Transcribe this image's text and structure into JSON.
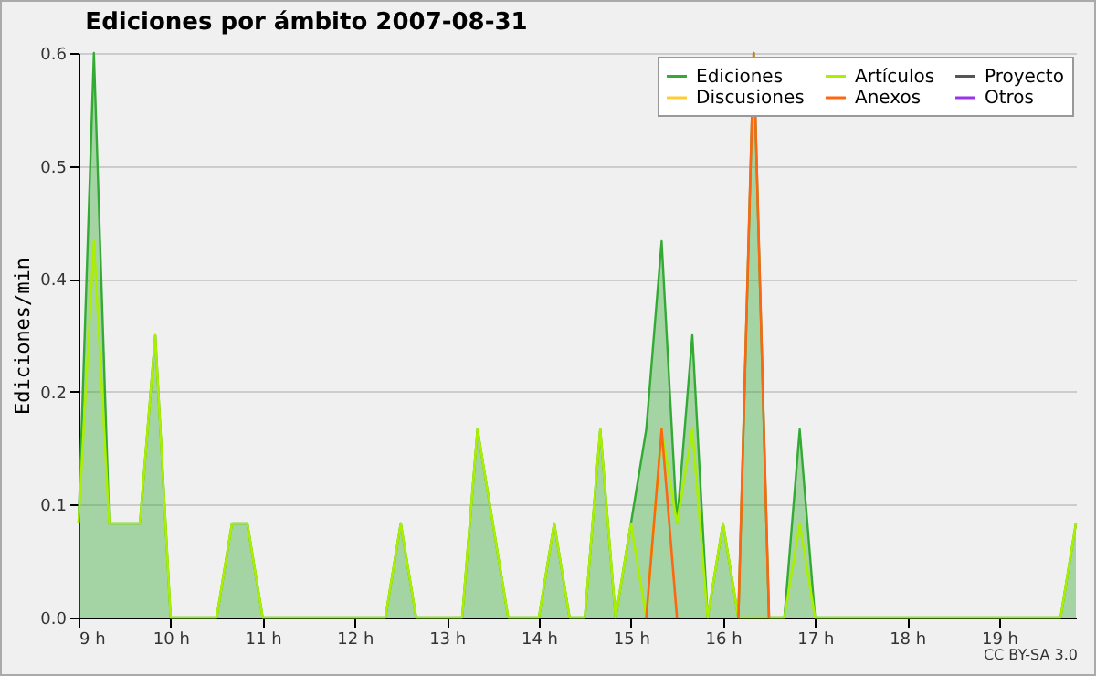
{
  "chart_data": {
    "type": "area",
    "title": "Ediciones por ámbito  2007-08-31",
    "ylabel": "Ediciones/min",
    "x": [
      9,
      9.1667,
      9.3333,
      9.5,
      9.6667,
      9.8333,
      10,
      10.1667,
      10.3333,
      10.5,
      10.6667,
      10.8333,
      11,
      11.1667,
      11.3333,
      11.5,
      11.6667,
      11.8333,
      12,
      12.1667,
      12.3333,
      12.5,
      12.6667,
      12.8333,
      13,
      13.1667,
      13.3333,
      13.5,
      13.6667,
      13.8333,
      14,
      14.1667,
      14.3333,
      14.5,
      14.6667,
      14.8333,
      15,
      15.1667,
      15.3333,
      15.5,
      15.6667,
      15.8333,
      16,
      16.1667,
      16.3333,
      16.5,
      16.6667,
      16.8333,
      17,
      17.1667,
      17.3333,
      17.5,
      17.6667,
      17.8333,
      18,
      18.1667,
      18.3333,
      18.5,
      18.6667,
      18.8333,
      19,
      19.1667,
      19.3333,
      19.5,
      19.6667,
      19.8333
    ],
    "series": [
      {
        "name": "Ediciones",
        "color": "#33aa33",
        "values": [
          0.1,
          0.6,
          0.1,
          0.1,
          0.1,
          0.3,
          0,
          0,
          0,
          0,
          0.1,
          0.1,
          0,
          0,
          0,
          0,
          0,
          0,
          0,
          0,
          0,
          0.1,
          0,
          0,
          0,
          0,
          0.2,
          0.1,
          0,
          0,
          0,
          0.1,
          0,
          0,
          0.2,
          0,
          0.1,
          0.2,
          0.4,
          0.1,
          0.3,
          0,
          0.1,
          0,
          0.6,
          0,
          0,
          0.2,
          0,
          0,
          0,
          0,
          0,
          0,
          0,
          0,
          0,
          0,
          0,
          0,
          0,
          0,
          0,
          0,
          0,
          0.1
        ]
      },
      {
        "name": "Discusiones",
        "type": "line",
        "color": "#ffcc33",
        "values": [
          null,
          null,
          null,
          null,
          null,
          null,
          null,
          null,
          null,
          null,
          null,
          null,
          null,
          null,
          null,
          null,
          null,
          null,
          null,
          null,
          null,
          null,
          null,
          null,
          null,
          null,
          null,
          null,
          null,
          null,
          null,
          null,
          null,
          null,
          null,
          null,
          null,
          null,
          null,
          null,
          null,
          null,
          null,
          null,
          null,
          null,
          null,
          null,
          null,
          null,
          null,
          null,
          null,
          null,
          null,
          null,
          null,
          null,
          null,
          null,
          null,
          null,
          null,
          null,
          null,
          null
        ]
      },
      {
        "name": "Artículos",
        "type": "line",
        "color": "#aaee00",
        "values": [
          0.1,
          0.4,
          0.1,
          0.1,
          0.1,
          0.3,
          0,
          0,
          0,
          0,
          0.1,
          0.1,
          0,
          0,
          0,
          0,
          0,
          0,
          0,
          0,
          0,
          0.1,
          0,
          0,
          0,
          0,
          0.2,
          0.1,
          0,
          0,
          0,
          0.1,
          0,
          0,
          0.2,
          0,
          0.1,
          0,
          0.2,
          0.1,
          0.2,
          0,
          0.1,
          0,
          0,
          0,
          0,
          0.1,
          0,
          0,
          0,
          0,
          0,
          0,
          0,
          0,
          0,
          0,
          0,
          0,
          0,
          0,
          0,
          0,
          0,
          0.1
        ]
      },
      {
        "name": "Anexos",
        "type": "line",
        "color": "#ff6611",
        "values": [
          null,
          null,
          null,
          null,
          null,
          null,
          null,
          null,
          null,
          null,
          null,
          null,
          null,
          null,
          null,
          null,
          null,
          null,
          null,
          null,
          null,
          null,
          null,
          null,
          null,
          null,
          null,
          null,
          null,
          null,
          null,
          null,
          null,
          null,
          null,
          null,
          null,
          0,
          0.2,
          0,
          null,
          null,
          null,
          0,
          0.6,
          0,
          null,
          null,
          null,
          null,
          null,
          null,
          null,
          null,
          null,
          null,
          null,
          null,
          null,
          null,
          null,
          null,
          null,
          null,
          null,
          null
        ]
      },
      {
        "name": "Proyecto",
        "type": "line",
        "color": "#555555",
        "values": [
          null,
          null,
          null,
          null,
          null,
          null,
          null,
          null,
          null,
          null,
          null,
          null,
          null,
          null,
          null,
          null,
          null,
          null,
          null,
          null,
          null,
          null,
          null,
          null,
          null,
          null,
          null,
          null,
          null,
          null,
          null,
          null,
          null,
          null,
          null,
          null,
          null,
          null,
          null,
          null,
          null,
          null,
          null,
          null,
          null,
          null,
          null,
          null,
          null,
          null,
          null,
          null,
          null,
          null,
          null,
          null,
          null,
          null,
          null,
          null,
          null,
          null,
          null,
          null,
          null,
          null
        ]
      },
      {
        "name": "Otros",
        "type": "line",
        "color": "#9933ee",
        "values": [
          null,
          null,
          null,
          null,
          null,
          null,
          null,
          null,
          null,
          null,
          null,
          null,
          null,
          null,
          null,
          null,
          null,
          null,
          null,
          null,
          null,
          null,
          null,
          null,
          null,
          null,
          null,
          null,
          null,
          null,
          null,
          null,
          null,
          null,
          null,
          null,
          null,
          null,
          null,
          null,
          null,
          null,
          null,
          null,
          null,
          null,
          null,
          null,
          null,
          null,
          null,
          null,
          null,
          null,
          null,
          null,
          null,
          null,
          null,
          null,
          null,
          null,
          null,
          null,
          null,
          null
        ]
      }
    ],
    "xlim": [
      9,
      19.8333
    ],
    "xticks": [
      {
        "value": 9,
        "label": "9 h"
      },
      {
        "value": 10,
        "label": "10 h"
      },
      {
        "value": 11,
        "label": "11 h"
      },
      {
        "value": 12,
        "label": "12 h"
      },
      {
        "value": 13,
        "label": "13 h"
      },
      {
        "value": 14,
        "label": "14 h"
      },
      {
        "value": 15,
        "label": "15 h"
      },
      {
        "value": 16,
        "label": "16 h"
      },
      {
        "value": 17,
        "label": "17 h"
      },
      {
        "value": 18,
        "label": "18 h"
      },
      {
        "value": 19,
        "label": "19 h"
      }
    ],
    "ylim": [
      0,
      0.6
    ],
    "yticks": [
      {
        "value": 0,
        "label": "0.0"
      },
      {
        "value": 0.12,
        "label": "0.1"
      },
      {
        "value": 0.24,
        "label": "0.2"
      },
      {
        "value": 0.36,
        "label": "0.4"
      },
      {
        "value": 0.48,
        "label": "0.5"
      },
      {
        "value": 0.6,
        "label": "0.6"
      }
    ],
    "grid": "y",
    "legend": "top right",
    "annotations": [
      "CC BY-SA 3.0"
    ]
  }
}
